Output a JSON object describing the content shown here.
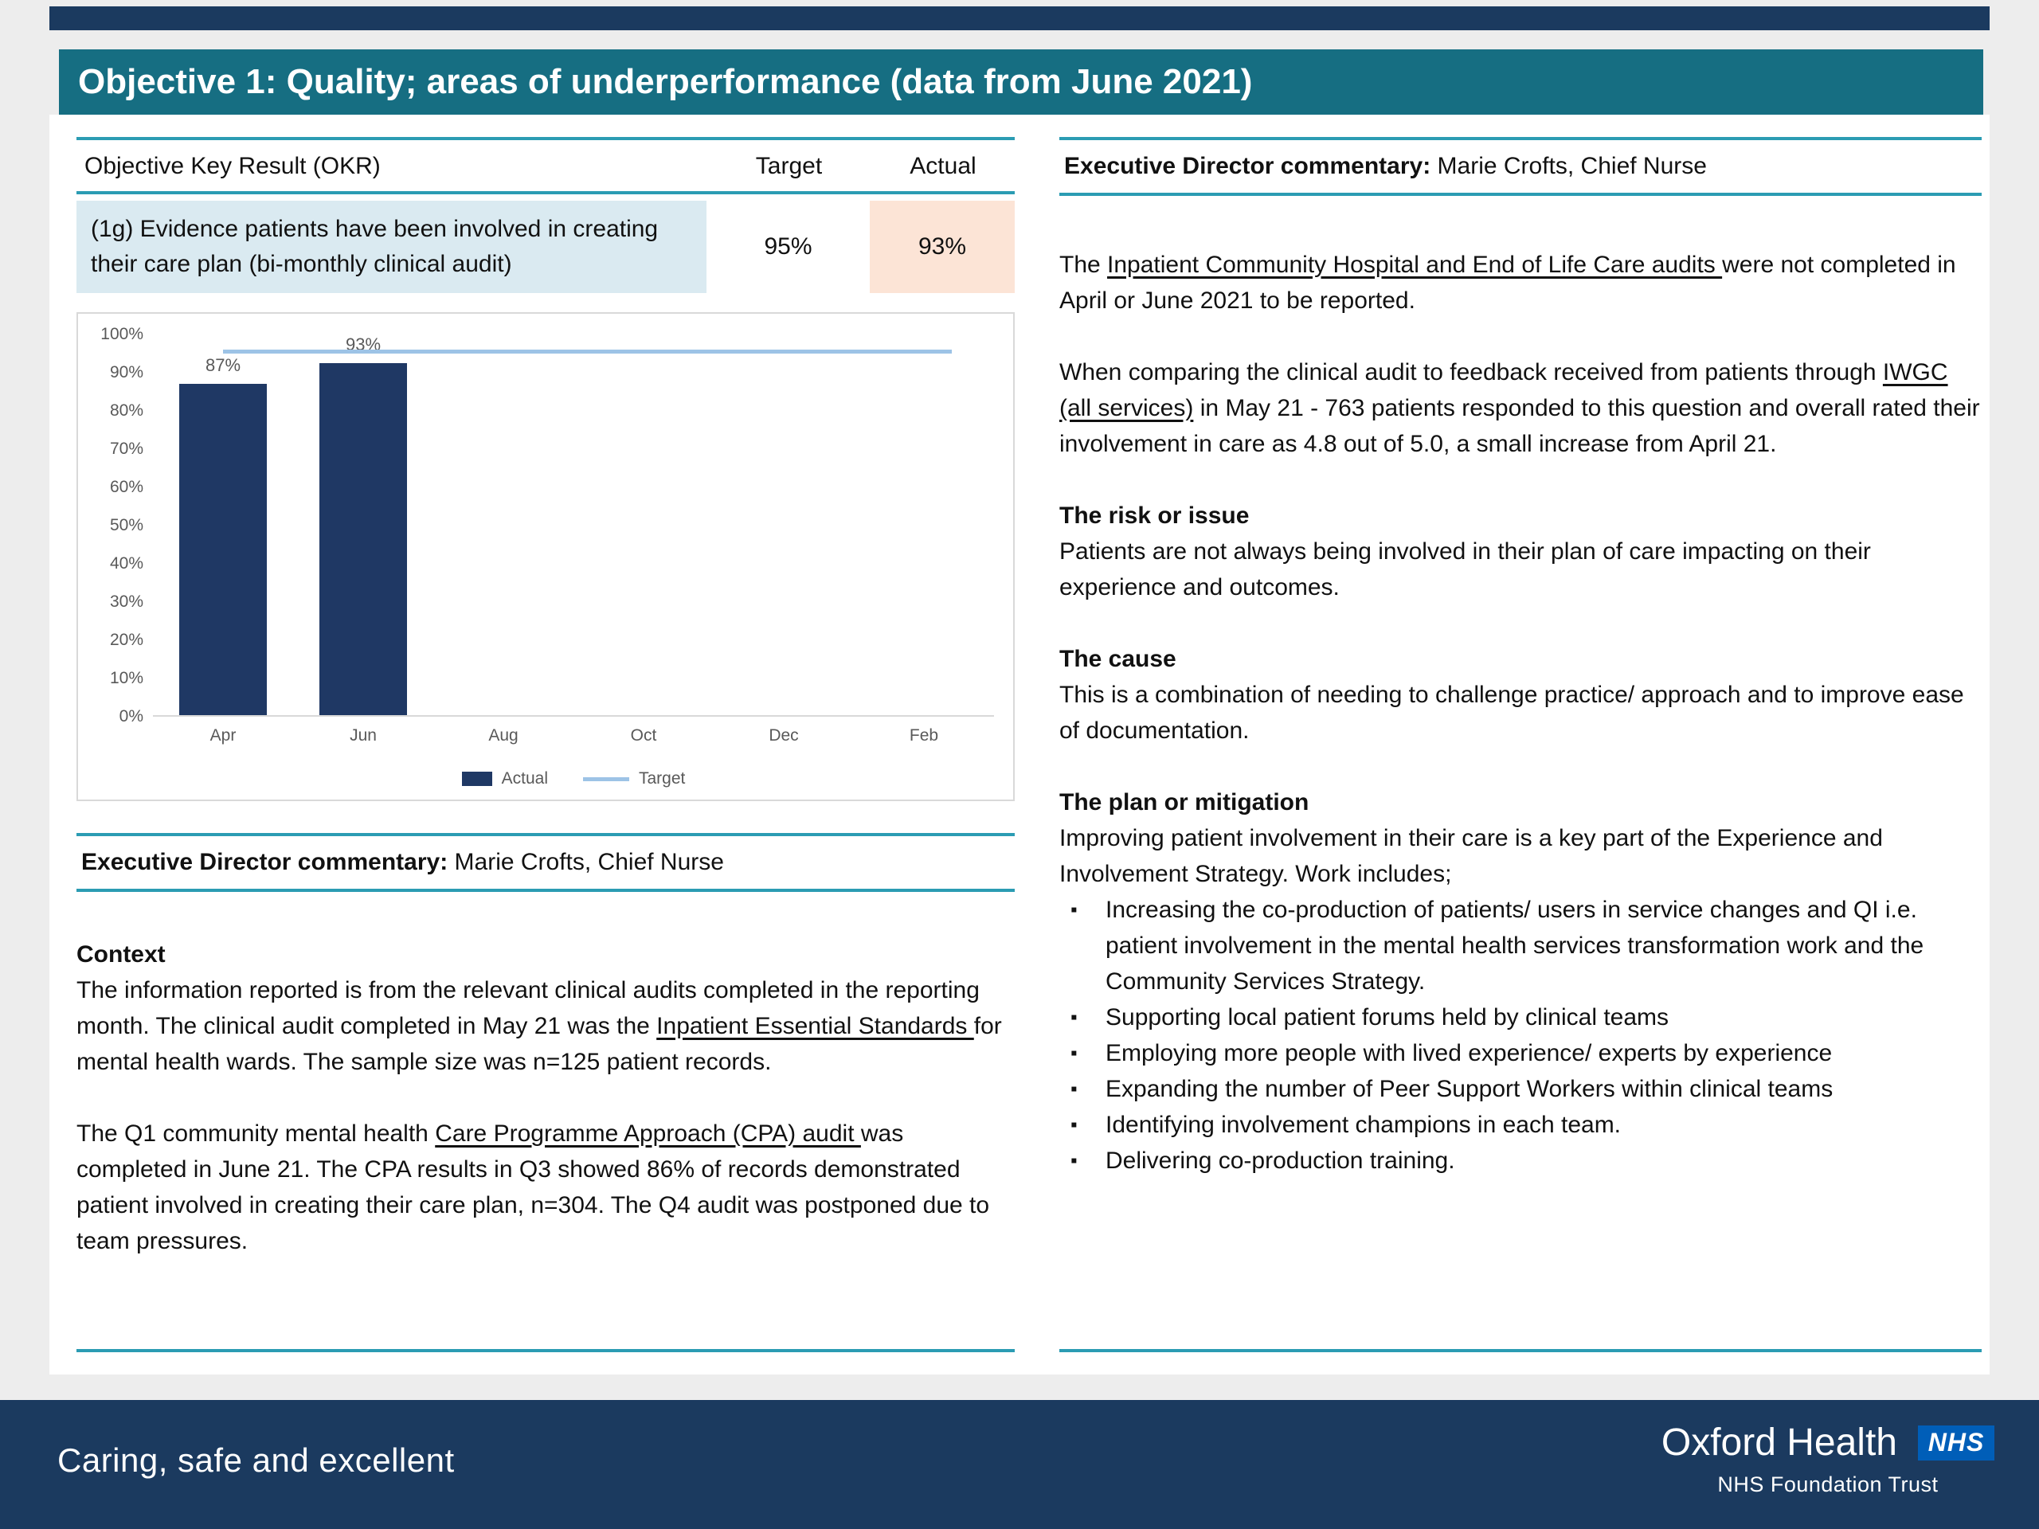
{
  "header": {
    "title": "Objective 1: Quality; areas of underperformance (data from June 2021)"
  },
  "colors": {
    "navy": "#1b3a5f",
    "teal_header": "#166e82",
    "teal_rule": "#2b9cb3",
    "okr_cell_blue": "#daeaf1",
    "actual_cell_peach": "#fce4d6",
    "bar_navy": "#1f3864",
    "target_blue": "#9dc3e6",
    "nhs_blue": "#005eb8"
  },
  "okr_table": {
    "headers": [
      "Objective Key Result (OKR)",
      "Target",
      "Actual"
    ],
    "row": {
      "okr": "(1g) Evidence patients have been involved in creating their care plan (bi-monthly clinical audit)",
      "target": "95%",
      "actual": "93%"
    }
  },
  "chart_data": {
    "type": "bar",
    "categories": [
      "Apr",
      "Jun",
      "Aug",
      "Oct",
      "Dec",
      "Feb"
    ],
    "series": [
      {
        "name": "Actual",
        "values": [
          87,
          93,
          null,
          null,
          null,
          null
        ]
      },
      {
        "name": "Target",
        "values": [
          95,
          95,
          95,
          95,
          95,
          95
        ]
      }
    ],
    "ylim": [
      0,
      100
    ],
    "ytick_step": 10,
    "ytick_suffix": "%",
    "legend_position": "bottom",
    "grid": false
  },
  "left_commentary": {
    "label": "Executive Director commentary:",
    "author": " Marie Crofts, Chief Nurse",
    "context_heading": "Context",
    "p1_pre": "The information reported is from the relevant clinical audits completed in the reporting month. The clinical audit completed in May 21 was the ",
    "p1_u": "Inpatient Essential Standards ",
    "p1_post": "for mental health wards. The sample size was n=125 patient records.",
    "p2_pre": "The Q1 community mental health ",
    "p2_u": "Care Programme Approach (CPA) audit ",
    "p2_post": "was completed in June 21. The CPA results in Q3 showed 86% of records demonstrated patient involved in creating their care plan, n=304. The Q4 audit was postponed due to team pressures."
  },
  "right_commentary": {
    "label": "Executive Director commentary:",
    "author": " Marie Crofts, Chief Nurse",
    "p1_pre": "The ",
    "p1_u": "Inpatient Community Hospital and End of Life Care audits ",
    "p1_post": "were not completed in April or June 2021 to be reported.",
    "p2_pre": "When comparing the clinical audit to feedback received from patients through ",
    "p2_u": "IWGC (all services)",
    "p2_post": " in May 21 - 763 patients responded to this question and overall rated their involvement in care as 4.8 out of 5.0, a small increase from April 21.",
    "risk_heading": "The risk or issue",
    "risk_text": "Patients are not always being involved in their plan of care impacting on their experience and outcomes.",
    "cause_heading": "The cause",
    "cause_text": "This is a combination of needing to challenge practice/ approach and to improve ease of documentation.",
    "plan_heading": "The plan or mitigation",
    "plan_text": "Improving patient involvement in their care is a key part of the Experience and Involvement Strategy. Work includes;",
    "bullets": [
      "Increasing the co-production of patients/ users in service changes and QI i.e. patient involvement in the mental health services transformation work and the Community Services Strategy.",
      "Supporting local patient forums held by clinical teams",
      "Employing more people with lived experience/ experts by experience",
      "Expanding the number of Peer Support Workers within clinical teams",
      "Identifying involvement champions in each team.",
      "Delivering co-production training."
    ]
  },
  "footer": {
    "tagline": "Caring, safe and excellent",
    "org_name": "Oxford Health",
    "nhs_logo": "NHS",
    "org_subtitle": "NHS Foundation Trust"
  }
}
